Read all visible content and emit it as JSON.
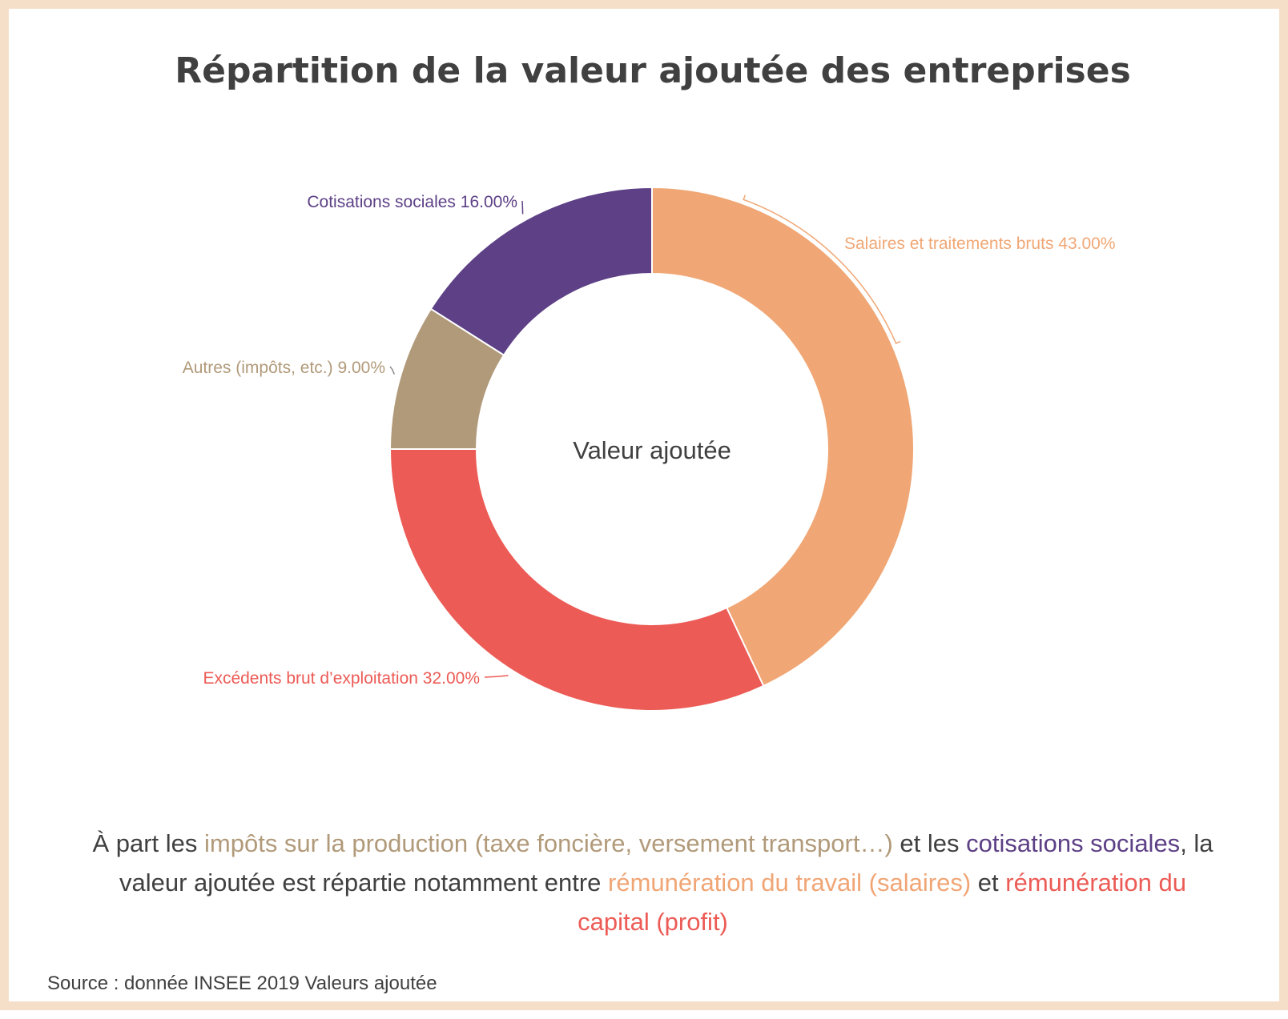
{
  "colors": {
    "salaires": "#f0a775",
    "excedents": "#ec5b55",
    "autres": "#b19a7a",
    "cotisations": "#5d4086"
  },
  "chart_data": {
    "type": "pie",
    "title": "Répartition de la valeur ajoutée des entreprises",
    "center_label": "Valeur ajoutée",
    "donut": true,
    "slices": [
      {
        "label": "Salaires et traitements bruts 43.00%",
        "value": 43.0,
        "color": "#f0a775"
      },
      {
        "label": "Excédents brut d’exploitation 32.00%",
        "value": 32.0,
        "color": "#ec5b55"
      },
      {
        "label": "Autres (impôts, etc.) 9.00%",
        "value": 9.0,
        "color": "#b19a7a"
      },
      {
        "label": "Cotisations sociales 16.00%",
        "value": 16.0,
        "color": "#5d4086"
      }
    ]
  },
  "caption": {
    "p1": "À part les ",
    "p2": "impôts sur la production (taxe foncière, versement transport…)",
    "p3": " et les ",
    "p4": "cotisations sociales",
    "p5": ", la valeur ajoutée est répartie notamment entre ",
    "p6": "rémunération du travail (salaires)",
    "p7": " et ",
    "p8": "rémunération du capital (profit)"
  },
  "source": "Source : donnée INSEE 2019 Valeurs ajoutée"
}
